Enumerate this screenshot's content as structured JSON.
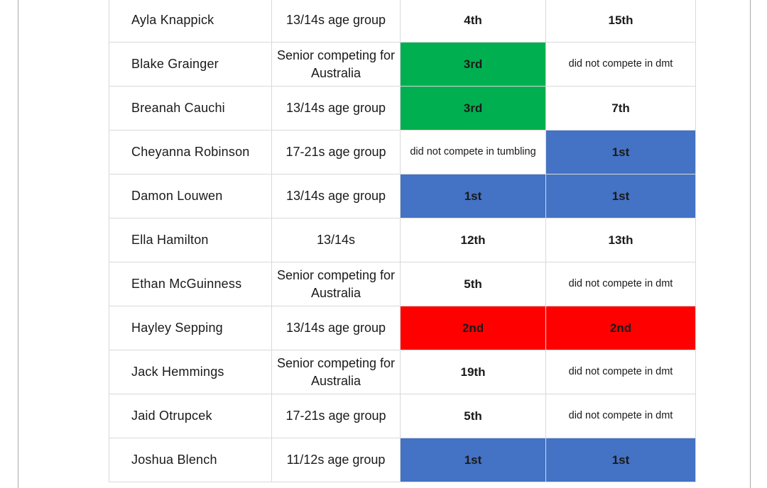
{
  "colors": {
    "gold_third": "#00b050",
    "first": "#4472c4",
    "second": "#ff0000",
    "plain": "#ffffff",
    "border": "#d9d9d9"
  },
  "rows": [
    {
      "name": "Ayla Knappick",
      "category": "13/14s age group",
      "tumbling": "4th",
      "dmt": "15th"
    },
    {
      "name": "Blake Grainger",
      "category": "Senior competing for Australia",
      "tumbling": "3rd",
      "dmt": "did not compete in dmt"
    },
    {
      "name": "Breanah Cauchi",
      "category": "13/14s age group",
      "tumbling": "3rd",
      "dmt": "7th"
    },
    {
      "name": "Cheyanna Robinson",
      "category": "17-21s age group",
      "tumbling": "did not compete in tumbling",
      "dmt": "1st"
    },
    {
      "name": "Damon Louwen",
      "category": "13/14s age group",
      "tumbling": "1st",
      "dmt": "1st"
    },
    {
      "name": "Ella Hamilton",
      "category": "13/14s",
      "tumbling": "12th",
      "dmt": "13th"
    },
    {
      "name": "Ethan McGuinness",
      "category": "Senior competing for Australia",
      "tumbling": "5th",
      "dmt": "did not compete in dmt"
    },
    {
      "name": "Hayley Sepping",
      "category": "13/14s age group",
      "tumbling": "2nd",
      "dmt": "2nd"
    },
    {
      "name": "Jack Hemmings",
      "category": "Senior competing for Australia",
      "tumbling": "19th",
      "dmt": "did not compete in dmt"
    },
    {
      "name": "Jaid Otrupcek",
      "category": "17-21s age group",
      "tumbling": "5th",
      "dmt": "did not compete in dmt"
    },
    {
      "name": "Joshua Blench",
      "category": "11/12s age group",
      "tumbling": "1st",
      "dmt": "1st"
    }
  ]
}
